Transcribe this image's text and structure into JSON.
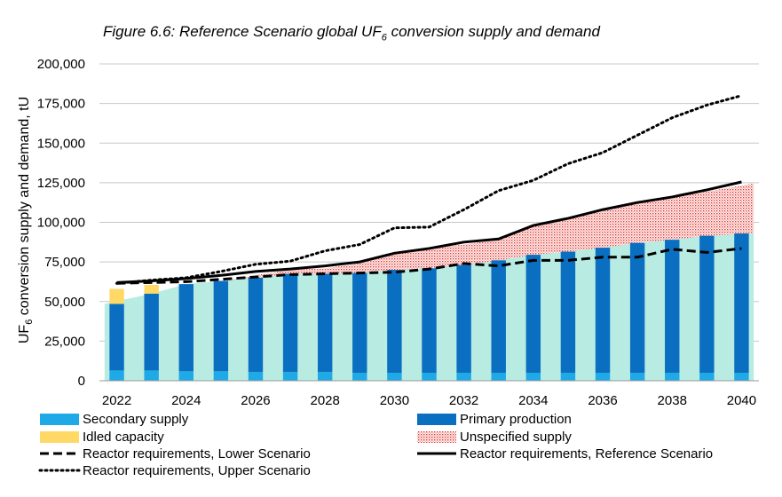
{
  "title": {
    "pre": "Figure 6.6: Reference Scenario  global UF",
    "sub": "6",
    "post": " conversion supply and demand"
  },
  "chart_data": {
    "type": "bar",
    "stacked": true,
    "ylabel": {
      "pre": "UF",
      "sub": "6",
      "post": " conversion supply and demand, tU"
    },
    "ylim": [
      0,
      200000
    ],
    "yticks": [
      0,
      25000,
      50000,
      75000,
      100000,
      125000,
      150000,
      175000,
      200000
    ],
    "ytick_labels": [
      "0",
      "25,000",
      "50,000",
      "75,000",
      "100,000",
      "125,000",
      "150,000",
      "175,000",
      "200,000"
    ],
    "x": [
      2022,
      2023,
      2024,
      2025,
      2026,
      2027,
      2028,
      2029,
      2030,
      2031,
      2032,
      2033,
      2034,
      2035,
      2036,
      2037,
      2038,
      2039,
      2040
    ],
    "xtick_labels": [
      "2022",
      "2024",
      "2026",
      "2028",
      "2030",
      "2032",
      "2034",
      "2036",
      "2038",
      "2040"
    ],
    "grid": true,
    "legend_placement": "bottom",
    "series": [
      {
        "name": "Secondary supply",
        "kind": "bar",
        "color": "#1fa9e6",
        "values": [
          6500,
          6500,
          6000,
          6000,
          5500,
          5500,
          5500,
          5000,
          5000,
          5000,
          5000,
          5000,
          5000,
          5000,
          5000,
          5000,
          5000,
          5000,
          5000
        ]
      },
      {
        "name": "Primary production",
        "kind": "bar",
        "color": "#0b6fc1",
        "values": [
          42000,
          48500,
          55000,
          57000,
          59500,
          62000,
          62000,
          63000,
          65000,
          66000,
          68000,
          71000,
          74500,
          76500,
          79000,
          82000,
          84000,
          86500,
          88000
        ]
      },
      {
        "name": "Idled capacity",
        "kind": "bar",
        "color": "#ffd966",
        "values": [
          9500,
          5500,
          0,
          0,
          0,
          0,
          0,
          0,
          0,
          0,
          0,
          0,
          0,
          0,
          0,
          0,
          0,
          0,
          0
        ]
      },
      {
        "name": "Unspecified supply",
        "kind": "area",
        "color": "#e0302a",
        "values": [
          0,
          0,
          0,
          0,
          1500,
          2500,
          3500,
          6000,
          10000,
          12500,
          13000,
          13000,
          18500,
          21000,
          23000,
          25000,
          27000,
          28000,
          31500
        ]
      },
      {
        "name": "Reactor requirements, Lower Scenario",
        "kind": "line",
        "style": "dashed",
        "color": "#000000",
        "values": [
          61500,
          62000,
          62500,
          64000,
          65500,
          67000,
          67500,
          68000,
          68500,
          70500,
          74000,
          72500,
          76000,
          76000,
          78000,
          78000,
          83000,
          81000,
          83500
        ]
      },
      {
        "name": "Reactor requirements, Reference Scenario",
        "kind": "line",
        "style": "solid",
        "color": "#000000",
        "values": [
          62000,
          63000,
          64500,
          66500,
          69000,
          70500,
          72500,
          75000,
          80500,
          83500,
          87500,
          89500,
          98000,
          102500,
          108000,
          112500,
          116000,
          120500,
          125500
        ]
      },
      {
        "name": "Reactor requirements, Upper Scenario",
        "kind": "line",
        "style": "dotted",
        "color": "#000000",
        "values": [
          61500,
          63500,
          65000,
          69000,
          73500,
          75500,
          82000,
          86000,
          96500,
          97000,
          108000,
          120000,
          126500,
          137000,
          144000,
          155000,
          166000,
          174000,
          180000
        ]
      }
    ],
    "base_fill_color": "#b8ece2"
  }
}
